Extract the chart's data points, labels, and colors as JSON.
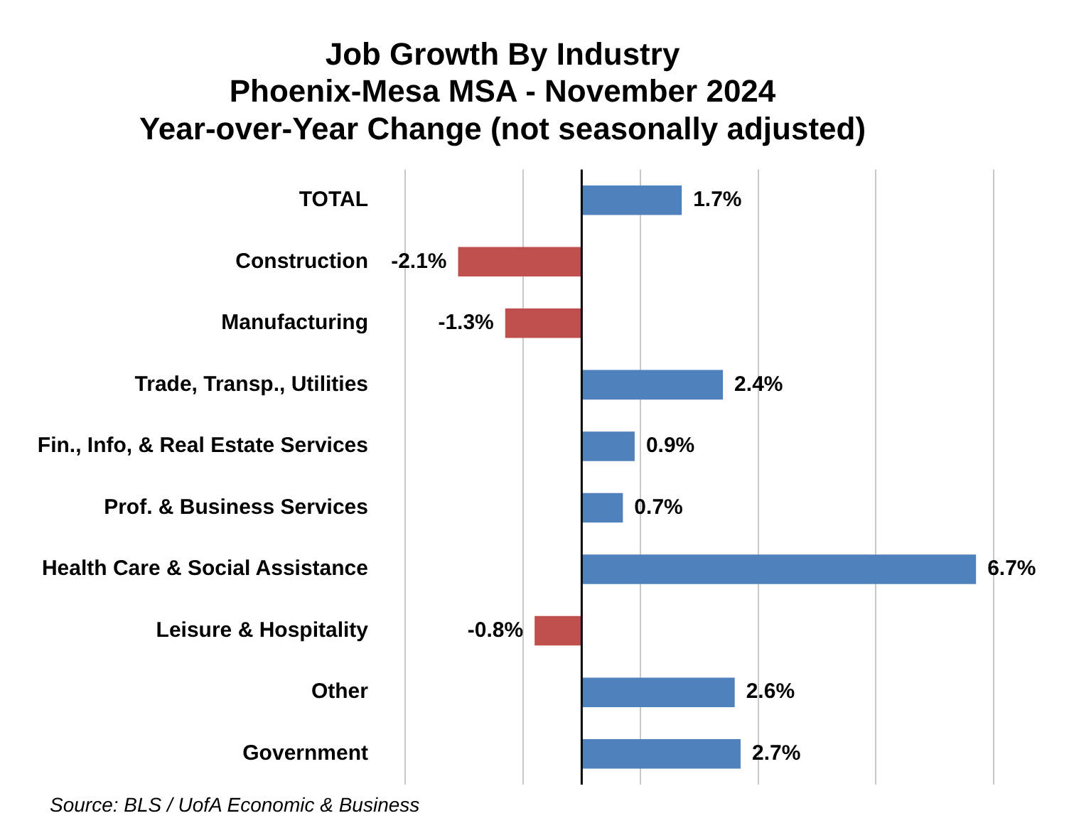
{
  "chart_data": {
    "type": "bar",
    "orientation": "horizontal",
    "title": [
      "Job Growth By Industry",
      "Phoenix-Mesa MSA - November 2024",
      "Year-over-Year Change (not seasonally adjusted)"
    ],
    "categories": [
      "TOTAL",
      "Construction",
      "Manufacturing",
      "Trade, Transp., Utilities",
      "Fin., Info, & Real Estate Services",
      "Prof. & Business Services",
      "Health Care & Social Assistance",
      "Leisure & Hospitality",
      "Other",
      "Government"
    ],
    "values": [
      1.7,
      -2.1,
      -1.3,
      2.4,
      0.9,
      0.7,
      6.7,
      -0.8,
      2.6,
      2.7
    ],
    "colors": [
      "#4f81bd",
      "#c0504d",
      "#c0504d",
      "#4f81bd",
      "#4f81bd",
      "#4f81bd",
      "#4f81bd",
      "#c0504d",
      "#4f81bd",
      "#4f81bd"
    ],
    "value_labels": [
      "1.7%",
      "-2.1%",
      "-1.3%",
      "2.4%",
      "0.9%",
      "0.7%",
      "6.7%",
      "-0.8%",
      "2.6%",
      "2.7%"
    ],
    "xlim": [
      -3,
      7
    ],
    "xticks": [
      {
        "value": -3,
        "label": null
      },
      {
        "value": -1,
        "label": null
      },
      {
        "value": 1,
        "label": null
      },
      {
        "value": 3,
        "label": null
      },
      {
        "value": 5,
        "label": null
      },
      {
        "value": 7,
        "label": null
      }
    ],
    "tick_labels": "y",
    "grid": "x",
    "legend": false,
    "annotations": [
      "Source: BLS / UofA Economic & Business"
    ]
  }
}
